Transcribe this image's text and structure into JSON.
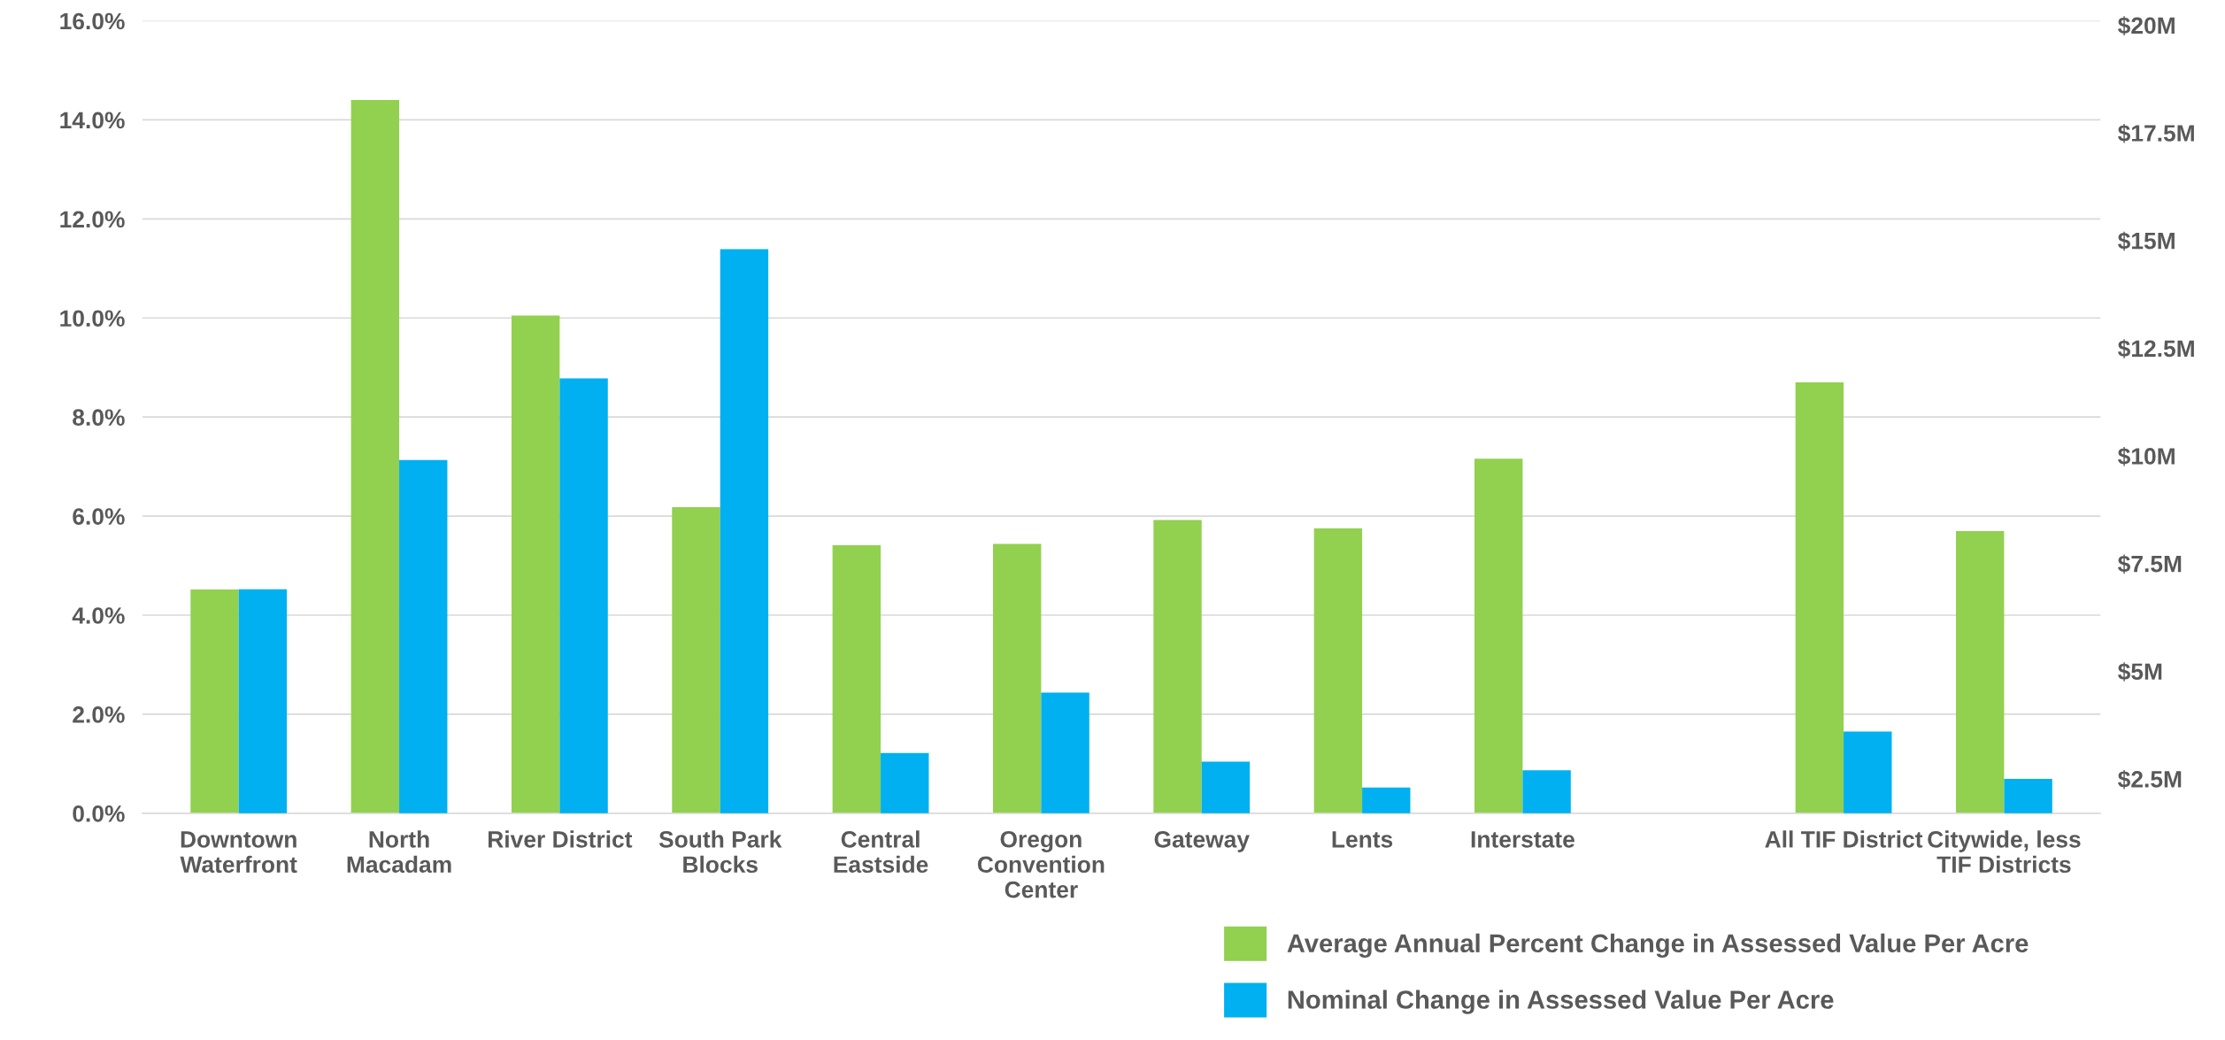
{
  "chart_data": {
    "type": "bar",
    "categories": [
      "Downtown\nWaterfront",
      "North\nMacadam",
      "River District",
      "South Park\nBlocks",
      "Central\nEastside",
      "Oregon\nConvention\nCenter",
      "Gateway",
      "Lents",
      "Interstate",
      null,
      "All TIF District",
      "Citywide, less\nTIF Districts"
    ],
    "series": [
      {
        "name": "Average Annual Percent Change in Assessed Value Per Acre",
        "color": "#92d050",
        "values": [
          4.52,
          14.4,
          10.05,
          6.18,
          5.41,
          5.44,
          5.92,
          5.75,
          7.16,
          null,
          8.7,
          5.7
        ]
      },
      {
        "name": "Nominal Change in Assessed Value Per Acre",
        "color": "#00b0f0",
        "axis": "y2",
        "values": [
          6.9,
          9.9,
          11.8,
          14.8,
          3.1,
          4.5,
          2.9,
          2.3,
          2.7,
          null,
          3.6,
          2.5
        ]
      }
    ],
    "ylim": [
      0,
      16
    ],
    "yticks": [
      {
        "value": 0,
        "label": "0.0%"
      },
      {
        "value": 2,
        "label": "2.0%"
      },
      {
        "value": 4,
        "label": "4.0%"
      },
      {
        "value": 6,
        "label": "6.0%"
      },
      {
        "value": 8,
        "label": "8.0%"
      },
      {
        "value": 10,
        "label": "10.0%"
      },
      {
        "value": 12,
        "label": "12.0%"
      },
      {
        "value": 14,
        "label": "14.0%"
      },
      {
        "value": 16,
        "label": "16.0%"
      }
    ],
    "y2lim": [
      1.7,
      20.1
    ],
    "y2ticks": [
      {
        "value": 2.5,
        "label": "$2.5M"
      },
      {
        "value": 5,
        "label": "$5M"
      },
      {
        "value": 7.5,
        "label": "$7.5M"
      },
      {
        "value": 10,
        "label": "$10M"
      },
      {
        "value": 12.5,
        "label": "$12.5M"
      },
      {
        "value": 15,
        "label": "$15M"
      },
      {
        "value": 17.5,
        "label": "$17.5M"
      },
      {
        "value": 20,
        "label": "$20M"
      }
    ],
    "grid": "y",
    "legend": "bottom right"
  }
}
